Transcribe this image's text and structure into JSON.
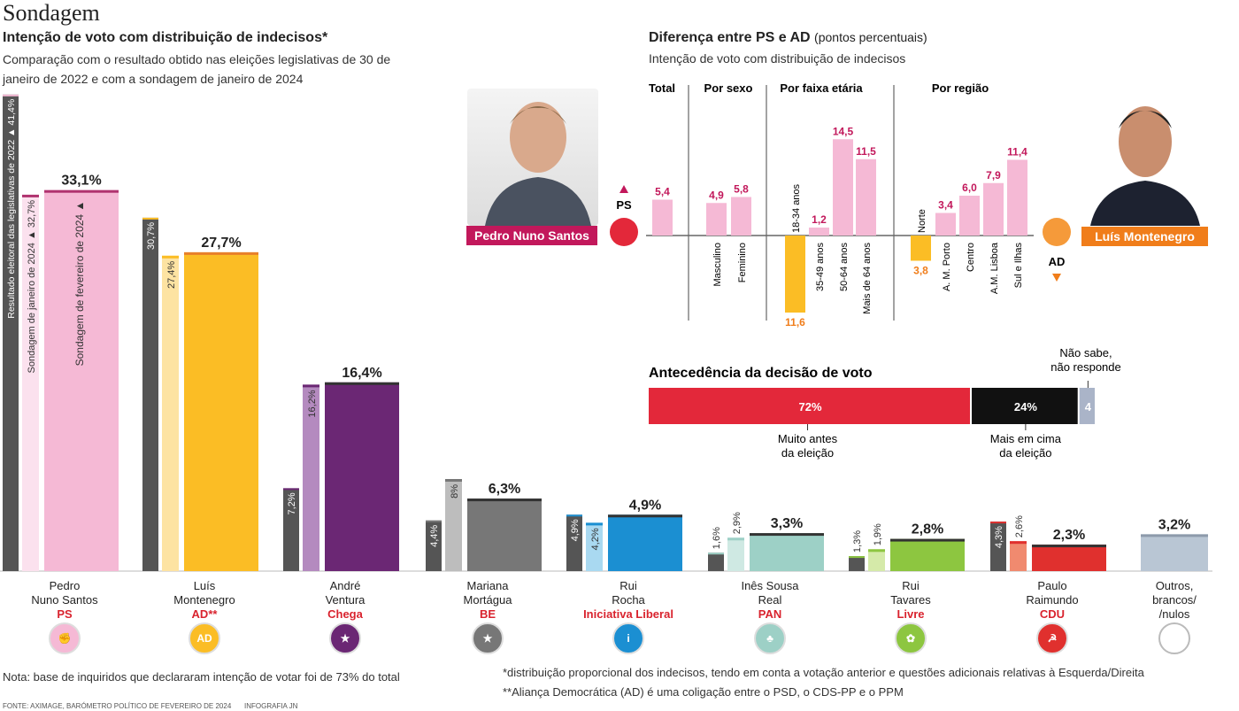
{
  "header": {
    "title": "Sondagem",
    "subtitle": "Intenção de voto com distribuição de indecisos*",
    "description": "Comparação com o resultado obtido nas eleições legislativas de 30 de janeiro de 2022 e com a sondagem de janeiro de 2024"
  },
  "chart_data": [
    {
      "type": "bar",
      "title": "Intenção de voto com distribuição de indecisos*",
      "series_labels": {
        "s2022": "Resultado eleitoral das legislativas de 2022 ▲ 41,4%",
        "jan": "Sondagem de janeiro de 2024 ▲ 32,7%",
        "feb": "Sondagem de fevereiro de 2024 ▲"
      },
      "categories": [
        "PS",
        "AD**",
        "Chega",
        "BE",
        "Iniciativa Liberal",
        "PAN",
        "Livre",
        "CDU",
        "Outros, brancos/ /nulos"
      ],
      "series": [
        {
          "name": "Resultado eleitoral das legislativas de 2022",
          "values": [
            41.4,
            30.7,
            7.2,
            4.4,
            4.9,
            1.6,
            1.3,
            4.3,
            null
          ],
          "labels": [
            "41,4%",
            "30,7%",
            "7,2%",
            "4,4%",
            "4,9%",
            "1,6%",
            "1,3%",
            "4,3%",
            ""
          ]
        },
        {
          "name": "Sondagem de janeiro de 2024",
          "values": [
            32.7,
            27.4,
            16.2,
            8,
            4.2,
            2.9,
            1.9,
            2.6,
            null
          ],
          "labels": [
            "32,7%",
            "27,4%",
            "16,2%",
            "8%",
            "4,2%",
            "2,9%",
            "1,9%",
            "2,6%",
            ""
          ]
        },
        {
          "name": "Sondagem de fevereiro de 2024",
          "values": [
            33.1,
            27.7,
            16.4,
            6.3,
            4.9,
            3.3,
            2.8,
            2.3,
            3.2
          ],
          "labels": [
            "33,1%",
            "27,7%",
            "16,4%",
            "6,3%",
            "4,9%",
            "3,3%",
            "2,8%",
            "2,3%",
            "3,2%"
          ]
        }
      ],
      "colors": {
        "s2022": "#555555",
        "main": [
          "#f5b9d5",
          "#fbbd25",
          "#6b2774",
          "#777777",
          "#1b8fd2",
          "#9dd0c6",
          "#8dc640",
          "#e0302e",
          "#b9c6d4"
        ],
        "light": [
          "#fbe1ee",
          "#fde3a2",
          "#b48abf",
          "#bdbdbd",
          "#a9d9f1",
          "#cfe9e3",
          "#d5eaa9",
          "#f08a6f",
          "#dde3ea"
        ]
      },
      "candidates": [
        {
          "name1": "Pedro",
          "name2": "Nuno Santos",
          "party": "PS",
          "logo": "fist-rose-icon"
        },
        {
          "name1": "Luís",
          "name2": "Montenegro",
          "party": "AD**",
          "logo": "ad-logo-icon"
        },
        {
          "name1": "André",
          "name2": "Ventura",
          "party": "Chega",
          "logo": "chega-logo-icon"
        },
        {
          "name1": "Mariana",
          "name2": "Mortágua",
          "party": "BE",
          "logo": "be-star-icon"
        },
        {
          "name1": "Rui",
          "name2": "Rocha",
          "party": "Iniciativa Liberal",
          "logo": "il-logo-icon"
        },
        {
          "name1": "Inês Sousa",
          "name2": "Real",
          "party": "PAN",
          "logo": "pan-tree-icon"
        },
        {
          "name1": "Rui",
          "name2": "Tavares",
          "party": "Livre",
          "logo": "livre-poppy-icon"
        },
        {
          "name1": "Paulo",
          "name2": "Raimundo",
          "party": "CDU",
          "logo": "cdu-logo-icon"
        },
        {
          "name1": "Outros,",
          "name2": "brancos/",
          "party": "/nulos",
          "logo": "empty-circle-icon"
        }
      ],
      "ylim": [
        0,
        42
      ]
    },
    {
      "type": "bar",
      "title": "Diferença entre PS e AD",
      "title_suffix": "(pontos percentuais)",
      "subtitle": "Intenção de voto com distribuição de indecisos",
      "groups": [
        "Total",
        "Por sexo",
        "Por faixa etária",
        "Por região"
      ],
      "categories": [
        "",
        "Masculino",
        "Feminino",
        "18-34 anos",
        "35-49 anos",
        "50-64 anos",
        "Mais de 64 anos",
        "Norte",
        "A. M. Porto",
        "Centro",
        "A.M. Lisboa",
        "Sul e Ilhas"
      ],
      "values": [
        5.4,
        4.9,
        5.8,
        -11.6,
        1.2,
        14.5,
        11.5,
        -3.8,
        3.4,
        6.0,
        7.9,
        11.4
      ],
      "labels": [
        "5,4",
        "4,9",
        "5,8",
        "11,6",
        "1,2",
        "14,5",
        "11,5",
        "3,8",
        "3,4",
        "6,0",
        "7,9",
        "11,4"
      ],
      "positive_label": "PS",
      "negative_label": "AD",
      "colors": {
        "positive": "#f5b9d5",
        "negative": "#fbbd25",
        "positive_text": "#c2185b",
        "negative_text": "#f07d1a"
      }
    },
    {
      "type": "bar",
      "title": "Antecedência da decisão de voto",
      "orientation": "horizontal-stacked",
      "categories": [
        "Muito antes da eleição",
        "Mais em cima da eleição",
        "Não sabe, não responde"
      ],
      "values": [
        72,
        24,
        4
      ],
      "labels": [
        "72%",
        "24%",
        "4"
      ],
      "colors": [
        "#e3283a",
        "#111111",
        "#aab4c8"
      ],
      "legend_lines": [
        [
          "Muito antes",
          "da eleição"
        ],
        [
          "Mais em cima",
          "da eleição"
        ],
        [
          "Não sabe,",
          "não responde"
        ]
      ]
    }
  ],
  "people": {
    "left": "Pedro Nuno Santos",
    "right": "Luís Montenegro"
  },
  "notes": {
    "base": "Nota: base de inquiridos que declararam intenção de votar foi de 73% do total",
    "asterisk": "*distribuição proporcional dos indecisos, tendo em conta a votação anterior e questões adicionais relativas à Esquerda/Direita",
    "ad": "**Aliança Democrática (AD) é uma coligação entre o PSD, o CDS-PP e o PPM",
    "source": "FONTE: AXIMAGE, BARÓMETRO POLÍTICO DE FEVEREIRO DE 2024",
    "credit": "INFOGRAFIA JN"
  }
}
